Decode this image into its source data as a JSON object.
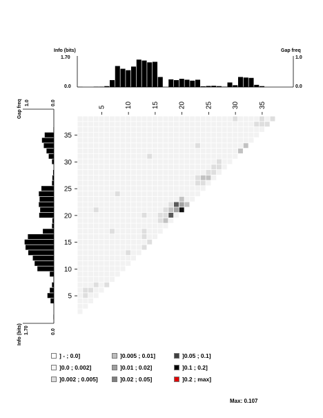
{
  "chart_data": {
    "type": "heatmap",
    "n": 38,
    "x_ticks": [
      5,
      10,
      15,
      20,
      25,
      30,
      35
    ],
    "y_ticks": [
      5,
      10,
      15,
      20,
      25,
      30,
      35
    ],
    "top_axis": {
      "label": "Info (bits)",
      "max_label": "1.70",
      "min_label": "0.0"
    },
    "top_gap_axis": {
      "label": "Gap freq",
      "max_label": "1.0",
      "min_label": "0.0"
    },
    "left_gap_axis": {
      "label": "Gap freq",
      "max_label": "1.0",
      "min_label": "0.0"
    },
    "left_info_axis": {
      "label": "Info (bits)",
      "max_label": "1.70",
      "min_label": "0.0"
    },
    "info_max": 1.7,
    "info_top": [
      0.01,
      0,
      0,
      0.02,
      0.02,
      0.05,
      0.38,
      1.15,
      1.0,
      0.92,
      1.12,
      1.5,
      1.45,
      1.35,
      1.38,
      0.55,
      0,
      0.42,
      0.38,
      0.45,
      0.4,
      0.35,
      0.4,
      0.04,
      0.06,
      0.07,
      0.05,
      0.02,
      0.25,
      0.1,
      0.55,
      0.52,
      0.5,
      0.12,
      0.05,
      0,
      0,
      0
    ],
    "info_left": [
      0.02,
      0,
      0,
      0.18,
      0.35,
      0.22,
      0.1,
      0.02,
      0.22,
      0.9,
      1.05,
      1.15,
      1.4,
      1.55,
      1.6,
      1.42,
      0.6,
      0.1,
      0.08,
      0.8,
      0.75,
      0.82,
      0.78,
      0.82,
      0.68,
      0.1,
      0.08,
      0.04,
      0,
      0.1,
      0.28,
      0.4,
      0.55,
      0.65,
      0.5,
      0.02,
      0,
      0
    ],
    "cells": [
      {
        "x": 30,
        "y": 29,
        "c": 4
      },
      {
        "x": 31,
        "y": 31,
        "c": 3
      },
      {
        "x": 30,
        "y": 31,
        "c": 2
      },
      {
        "x": 31,
        "y": 30,
        "c": 2
      },
      {
        "x": 32,
        "y": 31,
        "c": 2
      },
      {
        "x": 31,
        "y": 32,
        "c": 2
      },
      {
        "x": 19,
        "y": 20,
        "c": 5
      },
      {
        "x": 18,
        "y": 21,
        "c": 4
      },
      {
        "x": 17,
        "y": 19,
        "c": 4
      },
      {
        "x": 18,
        "y": 20,
        "c": 3
      },
      {
        "x": 19,
        "y": 21,
        "c": 3
      },
      {
        "x": 17,
        "y": 20,
        "c": 2
      },
      {
        "x": 20,
        "y": 21,
        "c": 2
      },
      {
        "x": 16,
        "y": 18,
        "c": 2
      },
      {
        "x": 19,
        "y": 22,
        "c": 2
      },
      {
        "x": 16,
        "y": 20,
        "c": 1
      },
      {
        "x": 16,
        "y": 19,
        "c": 1
      },
      {
        "x": 17,
        "y": 21,
        "c": 1
      },
      {
        "x": 15,
        "y": 19,
        "c": 1
      },
      {
        "x": 15,
        "y": 18,
        "c": 1
      },
      {
        "x": 24,
        "y": 26,
        "c": 2
      },
      {
        "x": 23,
        "y": 26,
        "c": 2
      },
      {
        "x": 22,
        "y": 26,
        "c": 1
      },
      {
        "x": 23,
        "y": 25,
        "c": 1
      },
      {
        "x": 24,
        "y": 27,
        "c": 1
      },
      {
        "x": 25,
        "y": 27,
        "c": 1
      },
      {
        "x": 25,
        "y": 28,
        "c": 1
      },
      {
        "x": 26,
        "y": 28,
        "c": 1
      },
      {
        "x": 26,
        "y": 29,
        "c": 1
      },
      {
        "x": 22,
        "y": 25,
        "c": 1
      },
      {
        "x": 33,
        "y": 36,
        "c": 1
      },
      {
        "x": 34,
        "y": 37,
        "c": 1
      },
      {
        "x": 34,
        "y": 36,
        "c": 1
      },
      {
        "x": 35,
        "y": 36,
        "c": 1
      },
      {
        "x": 36,
        "y": 37,
        "c": 1
      },
      {
        "x": 29,
        "y": 37,
        "c": 1
      },
      {
        "x": 22,
        "y": 32,
        "c": 1
      },
      {
        "x": 13,
        "y": 30,
        "c": 1
      },
      {
        "x": 1,
        "y": 5,
        "c": 1
      },
      {
        "x": 2,
        "y": 5,
        "c": 1
      },
      {
        "x": 1,
        "y": 4,
        "c": 1
      },
      {
        "x": 3,
        "y": 6,
        "c": 1
      },
      {
        "x": 6,
        "y": 6,
        "c": 1
      },
      {
        "x": 5,
        "y": 6,
        "c": 1
      },
      {
        "x": 3,
        "y": 20,
        "c": 1
      },
      {
        "x": 6,
        "y": 16,
        "c": 1
      },
      {
        "x": 7,
        "y": 23,
        "c": 1
      },
      {
        "x": 12,
        "y": 19,
        "c": 1
      },
      {
        "x": 12,
        "y": 16,
        "c": 1
      },
      {
        "x": 12,
        "y": 15,
        "c": 1
      },
      {
        "x": 13,
        "y": 14,
        "c": 1
      },
      {
        "x": 13,
        "y": 13,
        "c": 1
      },
      {
        "x": 12,
        "y": 13,
        "c": 1
      },
      {
        "x": 9,
        "y": 12,
        "c": 1
      }
    ],
    "legend": [
      {
        "label": "] - ; 0.0]",
        "color": "#ffffff"
      },
      {
        "label": "]0.0 ; 0.002]",
        "color": "#f4f4f4"
      },
      {
        "label": "]0.002 ; 0.005]",
        "color": "#dcdcdc"
      },
      {
        "label": "]0.005 ; 0.01]",
        "color": "#bdbdbd"
      },
      {
        "label": "]0.01 ; 0.02]",
        "color": "#9e9e9e"
      },
      {
        "label": "]0.02 ; 0.05]",
        "color": "#7f7f7f"
      },
      {
        "label": "]0.05 ; 0.1]",
        "color": "#404040"
      },
      {
        "label": "]0.1 ; 0.2]",
        "color": "#000000"
      },
      {
        "label": "]0.2 ; max]",
        "color": "#e00000"
      }
    ],
    "cell_colors": [
      "#f2f2f2",
      "#dedede",
      "#c2c2c2",
      "#a2a2a2",
      "#5a5a5a",
      "#111111"
    ],
    "max_label": "Max: 0.107"
  }
}
